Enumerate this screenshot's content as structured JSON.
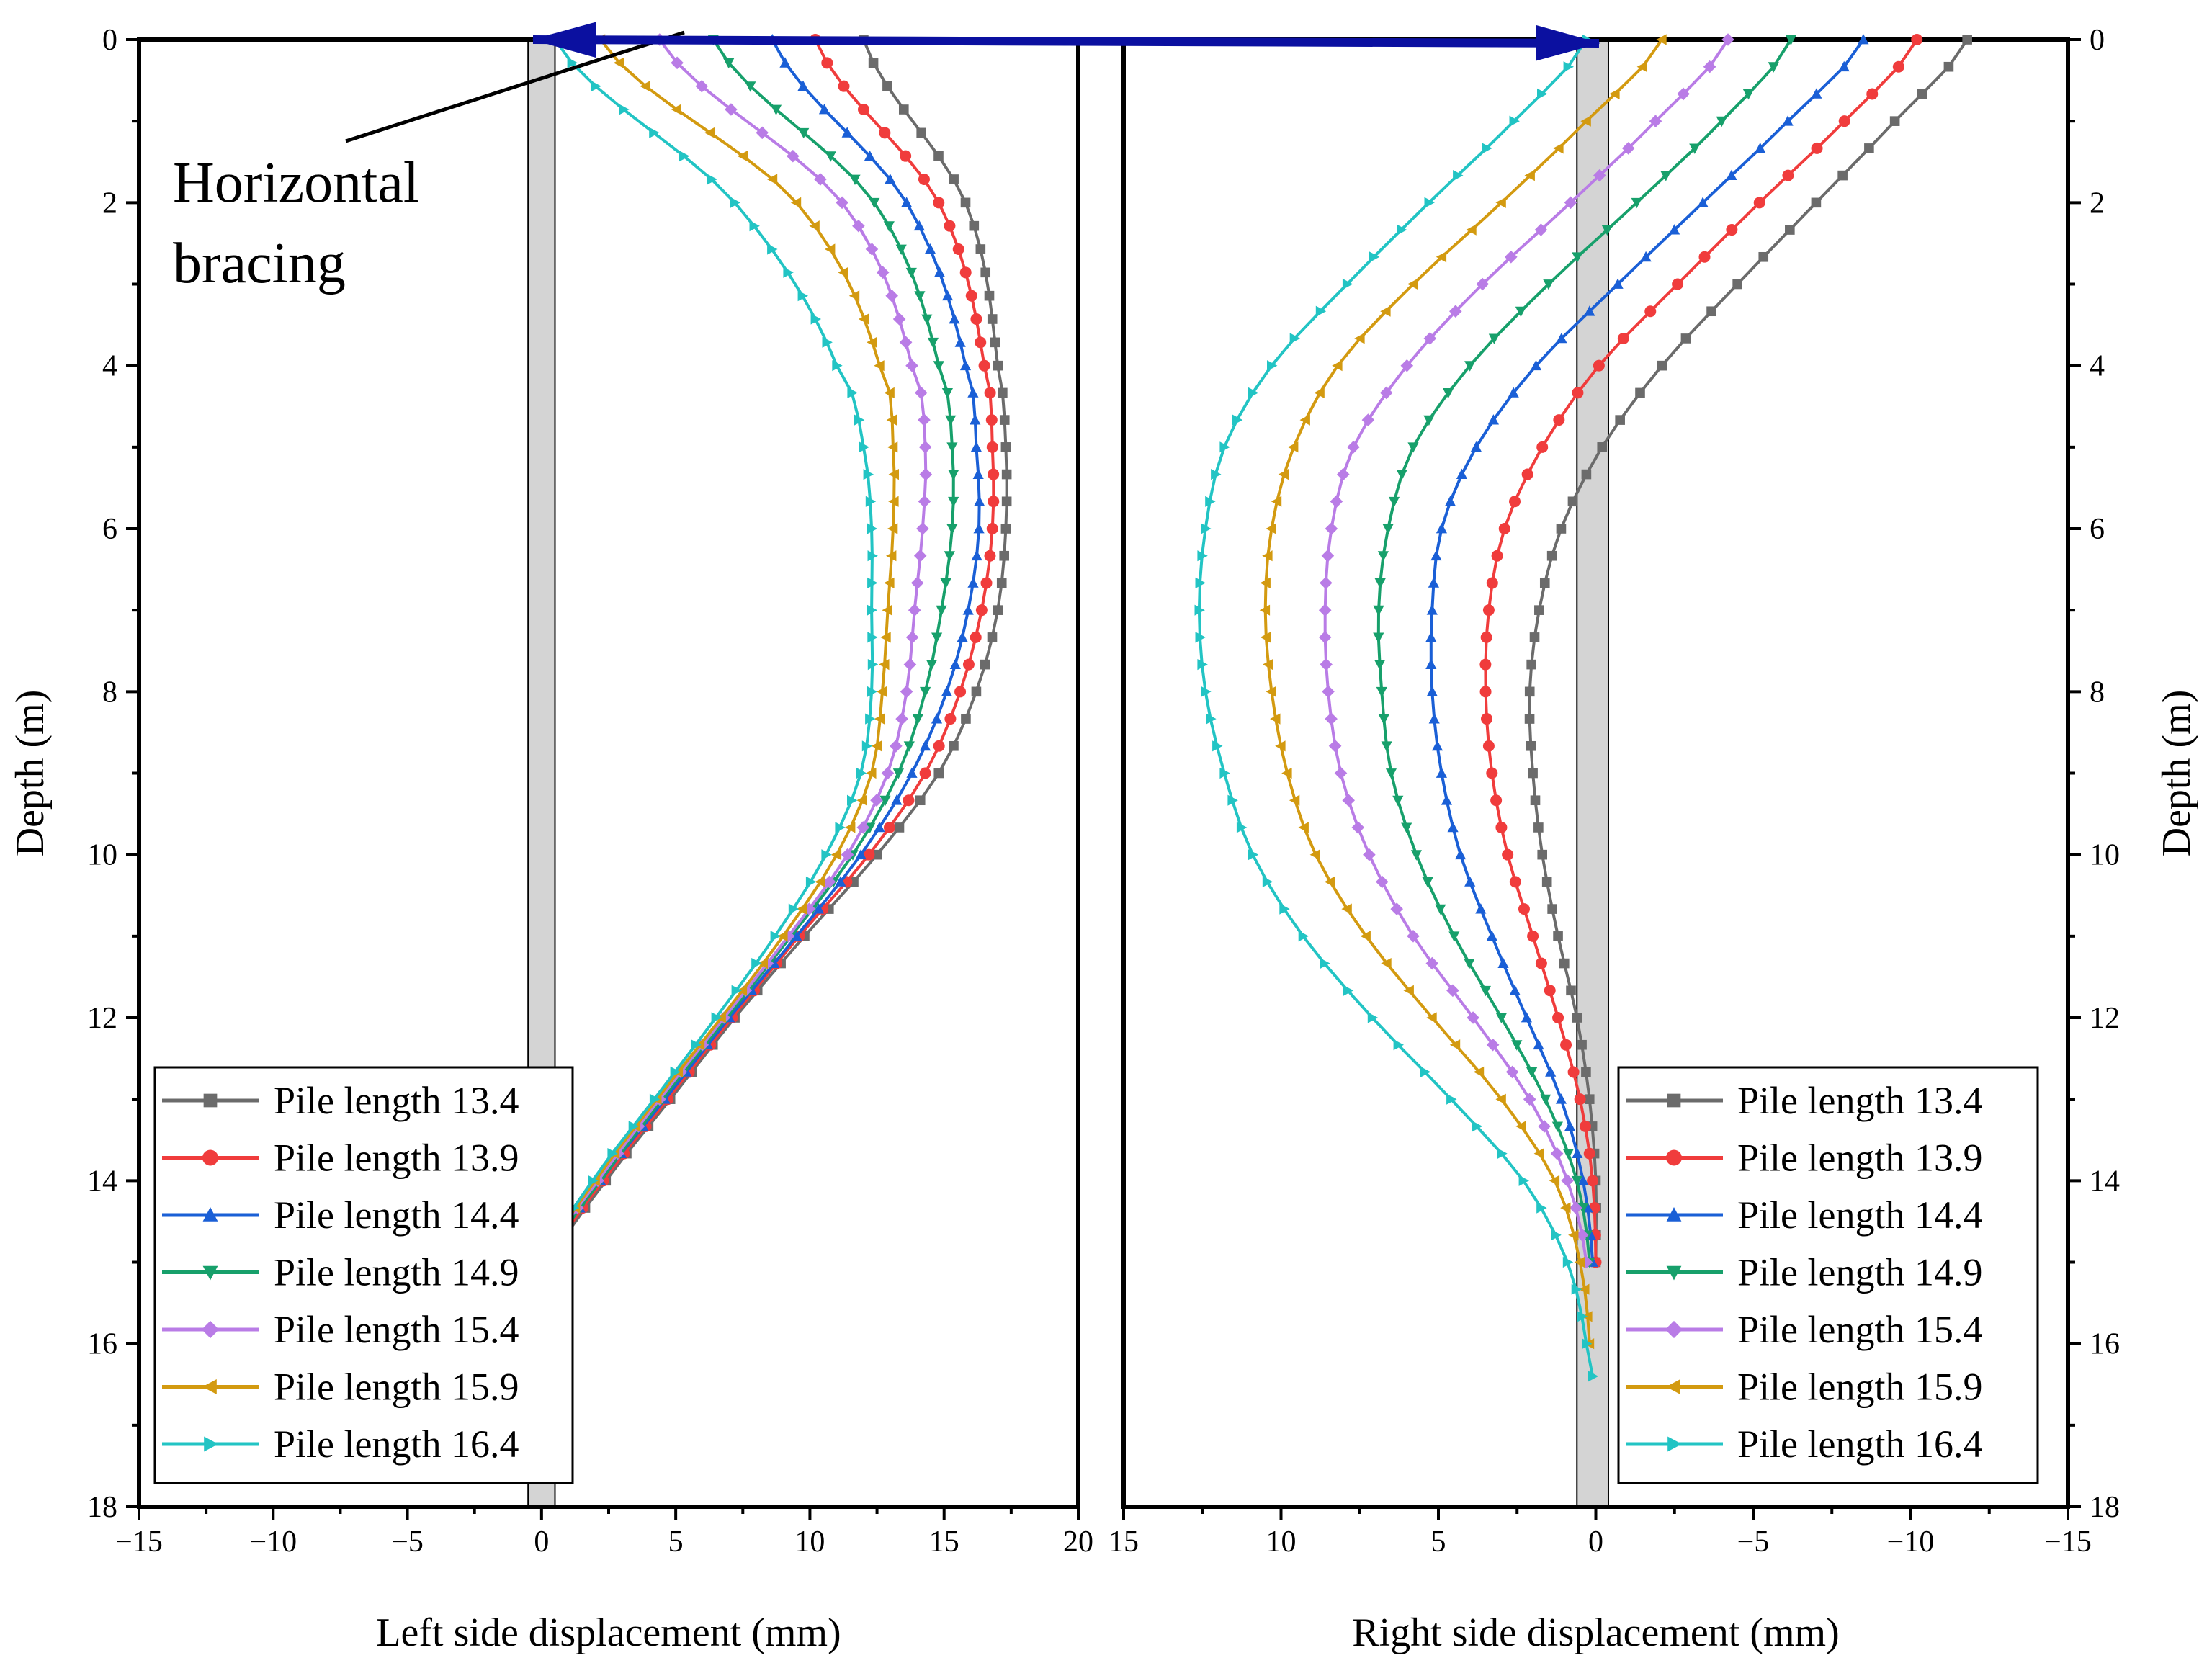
{
  "chart_data": [
    {
      "type": "line",
      "panel": "left",
      "xlabel": "Left  side displacement (mm)",
      "ylabel": "Depth (m)",
      "xlim": [
        -15,
        20
      ],
      "ylim": [
        18,
        0
      ],
      "xticks": [
        -15,
        -10,
        -5,
        0,
        5,
        10,
        15,
        20
      ],
      "yticks": [
        0,
        2,
        4,
        6,
        8,
        10,
        12,
        14,
        16,
        18
      ],
      "legend_position": "bottom-left",
      "annotation": [
        "Horizontal",
        "bracing"
      ],
      "series": [
        {
          "name": "Pile length 13.4",
          "color": "#6b6b6b",
          "marker": "square",
          "y": [
            0,
            2,
            4,
            5,
            6,
            7,
            8,
            9,
            10,
            11,
            12,
            13,
            14,
            15
          ],
          "x": [
            12.0,
            15.8,
            17.0,
            17.3,
            17.3,
            17.0,
            16.2,
            14.8,
            12.5,
            9.8,
            7.2,
            4.8,
            2.4,
            0.4
          ]
        },
        {
          "name": "Pile length 13.9",
          "color": "#f03c3c",
          "marker": "circle",
          "y": [
            0,
            2,
            4,
            5,
            6,
            7,
            8,
            9,
            10,
            11,
            12,
            13,
            14,
            15
          ],
          "x": [
            10.2,
            14.8,
            16.5,
            16.8,
            16.8,
            16.4,
            15.6,
            14.3,
            12.2,
            9.6,
            7.1,
            4.7,
            2.3,
            0.3
          ]
        },
        {
          "name": "Pile length 14.4",
          "color": "#1a5fd6",
          "marker": "triangle-up",
          "y": [
            0,
            2,
            4,
            5,
            6,
            7,
            8,
            9,
            10,
            11,
            12,
            13,
            14,
            15
          ],
          "x": [
            8.6,
            13.6,
            15.8,
            16.2,
            16.3,
            15.9,
            15.1,
            13.8,
            11.9,
            9.5,
            7.0,
            4.6,
            2.2,
            0.2
          ]
        },
        {
          "name": "Pile length 14.9",
          "color": "#17a06b",
          "marker": "triangle-down",
          "y": [
            0,
            2,
            4,
            5,
            6,
            7,
            8,
            9,
            10,
            11,
            12,
            13,
            14,
            15
          ],
          "x": [
            6.4,
            12.4,
            14.8,
            15.3,
            15.3,
            14.9,
            14.3,
            13.3,
            11.6,
            9.3,
            6.9,
            4.5,
            2.2,
            0.2
          ]
        },
        {
          "name": "Pile length 15.4",
          "color": "#b97ce6",
          "marker": "diamond",
          "y": [
            0,
            2,
            4,
            5,
            6,
            7,
            8,
            9,
            10,
            11,
            12,
            13,
            14,
            15
          ],
          "x": [
            4.4,
            11.2,
            13.8,
            14.3,
            14.2,
            13.9,
            13.6,
            12.9,
            11.4,
            9.2,
            6.8,
            4.4,
            2.1,
            0.1
          ]
        },
        {
          "name": "Pile length 15.9",
          "color": "#d39a10",
          "marker": "triangle-left",
          "y": [
            0,
            2,
            4,
            5,
            6,
            7,
            8,
            9,
            10,
            11,
            12,
            13,
            14,
            15
          ],
          "x": [
            2.2,
            9.5,
            12.6,
            13.1,
            13.1,
            12.9,
            12.7,
            12.3,
            11.0,
            9.0,
            6.7,
            4.3,
            2.0,
            0.1
          ]
        },
        {
          "name": "Pile length 16.4",
          "color": "#22c4c4",
          "marker": "triangle-right",
          "y": [
            0,
            2,
            4,
            5,
            6,
            7,
            8,
            9,
            10,
            11,
            12,
            13,
            14,
            15
          ],
          "x": [
            0.5,
            7.2,
            11.0,
            12.0,
            12.3,
            12.3,
            12.3,
            11.9,
            10.6,
            8.7,
            6.5,
            4.2,
            1.9,
            0.1
          ]
        }
      ]
    },
    {
      "type": "line",
      "panel": "right",
      "xlabel": "Right side displacement (mm)",
      "ylabel": "Depth (m)",
      "xlim": [
        15,
        -15
      ],
      "ylim": [
        18,
        0
      ],
      "xticks": [
        15,
        10,
        5,
        0,
        -5,
        -10,
        -15
      ],
      "xtick_labels": [
        "15",
        "10",
        "5",
        "0",
        "−5",
        "−10",
        "−15"
      ],
      "yticks": [
        0,
        2,
        4,
        6,
        8,
        10,
        12,
        14,
        16,
        18
      ],
      "legend_position": "bottom-right",
      "series": [
        {
          "name": "Pile length 13.4",
          "color": "#6b6b6b",
          "marker": "square",
          "y": [
            0,
            1,
            2,
            3,
            4,
            5,
            6,
            7,
            8,
            9,
            10,
            11,
            12,
            13,
            14,
            15
          ],
          "x": [
            -11.8,
            -9.5,
            -7.0,
            -4.5,
            -2.1,
            -0.2,
            1.1,
            1.8,
            2.1,
            2.0,
            1.7,
            1.2,
            0.6,
            0.2,
            0.0,
            0.0
          ]
        },
        {
          "name": "Pile length 13.9",
          "color": "#f03c3c",
          "marker": "circle",
          "y": [
            0,
            1,
            2,
            3,
            4,
            5,
            6,
            7,
            8,
            9,
            10,
            11,
            12,
            13,
            14,
            15
          ],
          "x": [
            -10.2,
            -7.9,
            -5.2,
            -2.6,
            -0.1,
            1.7,
            2.9,
            3.4,
            3.5,
            3.3,
            2.8,
            2.0,
            1.2,
            0.5,
            0.1,
            0.0
          ]
        },
        {
          "name": "Pile length 14.4",
          "color": "#1a5fd6",
          "marker": "triangle-up",
          "y": [
            0,
            1,
            2,
            3,
            4,
            5,
            6,
            7,
            8,
            9,
            10,
            11,
            12,
            13,
            14,
            15
          ],
          "x": [
            -8.5,
            -6.1,
            -3.4,
            -0.7,
            1.9,
            3.8,
            4.9,
            5.2,
            5.2,
            4.9,
            4.3,
            3.3,
            2.2,
            1.1,
            0.4,
            0.1
          ]
        },
        {
          "name": "Pile length 14.9",
          "color": "#17a06b",
          "marker": "triangle-down",
          "y": [
            0,
            1,
            2,
            3,
            4,
            5,
            6,
            7,
            8,
            9,
            10,
            11,
            12,
            13,
            14,
            15
          ],
          "x": [
            -6.2,
            -4.0,
            -1.3,
            1.5,
            4.0,
            5.8,
            6.6,
            6.9,
            6.8,
            6.5,
            5.7,
            4.5,
            3.0,
            1.6,
            0.6,
            0.2
          ]
        },
        {
          "name": "Pile length 15.4",
          "color": "#b97ce6",
          "marker": "diamond",
          "y": [
            0,
            1,
            2,
            3,
            4,
            5,
            6,
            7,
            8,
            9,
            10,
            11,
            12,
            13,
            14,
            15
          ],
          "x": [
            -4.2,
            -1.9,
            0.8,
            3.6,
            6.0,
            7.7,
            8.4,
            8.6,
            8.5,
            8.1,
            7.2,
            5.8,
            3.9,
            2.1,
            0.9,
            0.3
          ]
        },
        {
          "name": "Pile length 15.9",
          "color": "#d39a10",
          "marker": "triangle-left",
          "y": [
            0,
            1,
            2,
            3,
            4,
            5,
            6,
            7,
            8,
            9,
            10,
            11,
            12,
            13,
            14,
            15,
            16
          ],
          "x": [
            -2.1,
            0.3,
            3.0,
            5.8,
            8.2,
            9.6,
            10.3,
            10.5,
            10.3,
            9.8,
            8.9,
            7.3,
            5.2,
            3.0,
            1.3,
            0.5,
            0.2
          ]
        },
        {
          "name": "Pile length 16.4",
          "color": "#22c4c4",
          "marker": "triangle-right",
          "y": [
            0,
            1,
            2,
            3,
            4,
            5,
            6,
            7,
            8,
            9,
            10,
            11,
            12,
            13,
            14,
            15,
            16,
            16.4
          ],
          "x": [
            0.3,
            2.6,
            5.3,
            7.9,
            10.3,
            11.8,
            12.4,
            12.6,
            12.4,
            11.8,
            10.9,
            9.3,
            7.1,
            4.6,
            2.3,
            0.9,
            0.3,
            0.1
          ]
        }
      ]
    }
  ]
}
